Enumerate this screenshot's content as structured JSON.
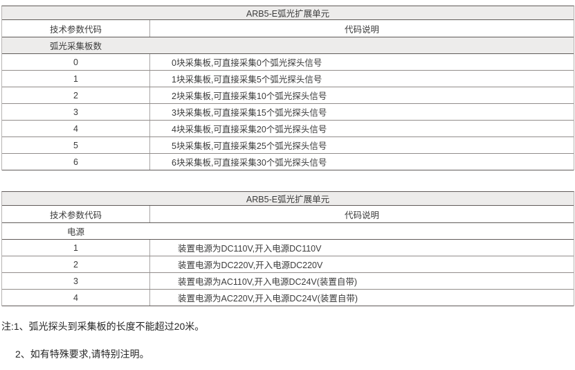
{
  "colors": {
    "shaded_fill": "#edeceb",
    "border_dark": "#5f5a58",
    "border_medium": "#918c8a",
    "border_light": "#a8a5a4",
    "text": "#3b3b3b"
  },
  "tables": [
    {
      "title": "ARB5-E弧光扩展单元",
      "columns": [
        "技术参数代码",
        "代码说明"
      ],
      "section": "弧光采集板数",
      "rows": [
        {
          "code": "0",
          "desc": "0块采集板,可直接采集0个弧光探头信号"
        },
        {
          "code": "1",
          "desc": "1块采集板,可直接采集5个弧光探头信号"
        },
        {
          "code": "2",
          "desc": "2块采集板,可直接采集10个弧光探头信号"
        },
        {
          "code": "3",
          "desc": "3块采集板,可直接采集15个弧光探头信号"
        },
        {
          "code": "4",
          "desc": "4块采集板,可直接采集20个弧光探头信号"
        },
        {
          "code": "5",
          "desc": "5块采集板,可直接采集25个弧光探头信号"
        },
        {
          "code": "6",
          "desc": "6块采集板,可直接采集30个弧光探头信号"
        }
      ]
    },
    {
      "title": "ARB5-E弧光扩展单元",
      "columns": [
        "技术参数代码",
        "代码说明"
      ],
      "section": "电源",
      "rows": [
        {
          "code": "1",
          "desc": "装置电源为DC110V,开入电源DC110V"
        },
        {
          "code": "2",
          "desc": "装置电源为DC220V,开入电源DC220V"
        },
        {
          "code": "3",
          "desc": "装置电源为AC110V,开入电源DC24V(装置自带)"
        },
        {
          "code": "4",
          "desc": "装置电源为AC220V,开入电源DC24V(装置自带)"
        }
      ]
    }
  ],
  "notes": {
    "line1": "注:1、弧光探头到采集板的长度不能超过20米。",
    "line2": "2、如有特殊要求,请特别注明。"
  }
}
